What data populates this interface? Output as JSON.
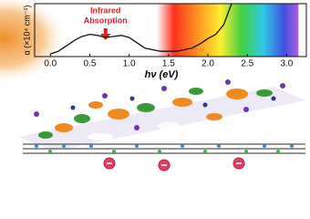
{
  "chart_data": {
    "type": "line",
    "xlabel": "hν (eV)",
    "ylabel": "α (×10⁴ cm⁻¹)",
    "annotation_lines": [
      "Infrared",
      "Absorption"
    ],
    "xlim": [
      -0.2,
      3.25
    ],
    "ylim": [
      0,
      1
    ],
    "xticks": [
      {
        "value": 0,
        "label": "0.0"
      },
      0.5,
      {
        "value": 1,
        "label": "1.0"
      },
      1.5,
      {
        "value": 2,
        "label": "2.0"
      },
      2.5,
      {
        "value": 3,
        "label": "3.0"
      }
    ],
    "series": [
      {
        "color": "#111111",
        "x": [
          0,
          0.1,
          0.2,
          0.3,
          0.4,
          0.5,
          0.6,
          0.7,
          0.8,
          0.9,
          1.0,
          1.1,
          1.2,
          1.4,
          1.6,
          1.8,
          1.9,
          2.0,
          2.1,
          2.2,
          2.25,
          2.3
        ],
        "values": [
          0.05,
          0.1,
          0.2,
          0.3,
          0.38,
          0.42,
          0.4,
          0.36,
          0.38,
          0.4,
          0.36,
          0.26,
          0.16,
          0.1,
          0.1,
          0.16,
          0.24,
          0.34,
          0.42,
          0.6,
          0.8,
          1.0
        ]
      }
    ]
  }
}
